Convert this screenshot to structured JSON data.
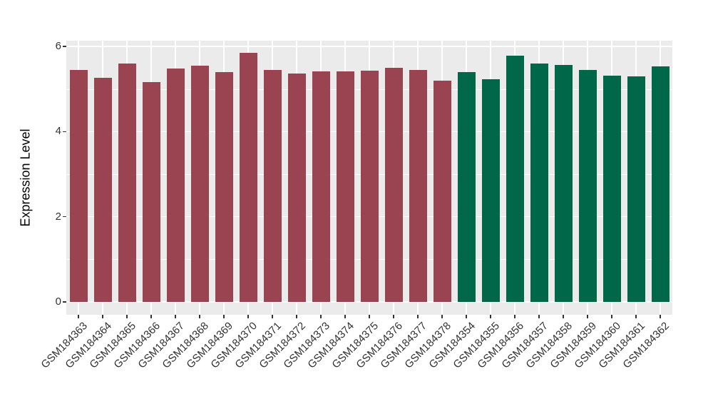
{
  "figure": {
    "background": "#FFFFFF",
    "panel_background": "#EBEBEB",
    "gridline_color": "#FFFFFF",
    "axis_text_color": "#333333",
    "tick_mark_color": "#333333"
  },
  "chart_data": {
    "type": "bar",
    "title": "",
    "xlabel": "",
    "ylabel": "Expression Level",
    "categories": [
      "GSM184363",
      "GSM184364",
      "GSM184365",
      "GSM184366",
      "GSM184367",
      "GSM184368",
      "GSM184369",
      "GSM184370",
      "GSM184371",
      "GSM184372",
      "GSM184373",
      "GSM184374",
      "GSM184375",
      "GSM184376",
      "GSM184377",
      "GSM184378",
      "GSM184354",
      "GSM184355",
      "GSM184356",
      "GSM184357",
      "GSM184358",
      "GSM184359",
      "GSM184360",
      "GSM184361",
      "GSM184362"
    ],
    "values": [
      5.45,
      5.26,
      5.59,
      5.16,
      5.48,
      5.55,
      5.4,
      5.85,
      5.45,
      5.36,
      5.41,
      5.41,
      5.43,
      5.5,
      5.45,
      5.19,
      5.4,
      5.23,
      5.78,
      5.6,
      5.56,
      5.45,
      5.31,
      5.3,
      5.53
    ],
    "bar_groups": [
      0,
      0,
      0,
      0,
      0,
      0,
      0,
      0,
      0,
      0,
      0,
      0,
      0,
      0,
      0,
      0,
      1,
      1,
      1,
      1,
      1,
      1,
      1,
      1,
      1
    ],
    "group_colors": [
      "#9A4452",
      "#006748"
    ],
    "y_ticks": [
      0,
      2,
      4,
      6
    ],
    "y_minor_ticks": [
      1,
      3,
      5
    ],
    "ylim": [
      -0.3,
      6.14
    ],
    "x_tick_angle": 45,
    "grid": "white major and minor horizontal lines, white vertical line at each category",
    "legend": "none"
  }
}
